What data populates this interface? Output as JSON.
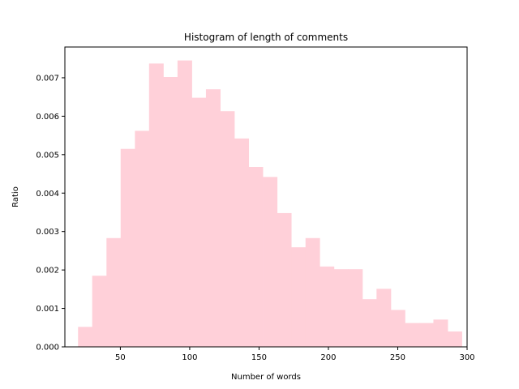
{
  "chart_data": {
    "type": "bar",
    "title": "Histogram of length of comments",
    "xlabel": "Number of words",
    "ylabel": "Ratio",
    "xlim": [
      10,
      300
    ],
    "ylim": [
      0,
      0.0078
    ],
    "x_ticks": [
      50,
      100,
      150,
      200,
      250,
      300
    ],
    "y_ticks": [
      0.0,
      0.001,
      0.002,
      0.003,
      0.004,
      0.005,
      0.006,
      0.007
    ],
    "y_tick_labels": [
      "0.000",
      "0.001",
      "0.002",
      "0.003",
      "0.004",
      "0.005",
      "0.006",
      "0.007"
    ],
    "bar_color": "#ffd0d9",
    "grid": false,
    "bins": [
      {
        "x0": 19.5,
        "x1": 29.7,
        "value": 0.00052
      },
      {
        "x0": 29.7,
        "x1": 40.0,
        "value": 0.00185
      },
      {
        "x0": 40.0,
        "x1": 50.2,
        "value": 0.00283
      },
      {
        "x0": 50.2,
        "x1": 60.5,
        "value": 0.00515
      },
      {
        "x0": 60.5,
        "x1": 70.7,
        "value": 0.00562
      },
      {
        "x0": 70.7,
        "x1": 81.0,
        "value": 0.00737
      },
      {
        "x0": 81.0,
        "x1": 91.2,
        "value": 0.00702
      },
      {
        "x0": 91.2,
        "x1": 101.5,
        "value": 0.00745
      },
      {
        "x0": 101.5,
        "x1": 111.7,
        "value": 0.00648
      },
      {
        "x0": 111.7,
        "x1": 122.0,
        "value": 0.0067
      },
      {
        "x0": 122.0,
        "x1": 132.2,
        "value": 0.00613
      },
      {
        "x0": 132.2,
        "x1": 142.5,
        "value": 0.00542
      },
      {
        "x0": 142.5,
        "x1": 152.7,
        "value": 0.00468
      },
      {
        "x0": 152.7,
        "x1": 163.0,
        "value": 0.00442
      },
      {
        "x0": 163.0,
        "x1": 173.2,
        "value": 0.00348
      },
      {
        "x0": 173.2,
        "x1": 183.5,
        "value": 0.00259
      },
      {
        "x0": 183.5,
        "x1": 193.7,
        "value": 0.00283
      },
      {
        "x0": 193.7,
        "x1": 204.0,
        "value": 0.00209
      },
      {
        "x0": 204.0,
        "x1": 214.2,
        "value": 0.00202
      },
      {
        "x0": 214.2,
        "x1": 224.5,
        "value": 0.00202
      },
      {
        "x0": 224.5,
        "x1": 234.7,
        "value": 0.00124
      },
      {
        "x0": 234.7,
        "x1": 245.0,
        "value": 0.00151
      },
      {
        "x0": 245.0,
        "x1": 255.2,
        "value": 0.00096
      },
      {
        "x0": 255.2,
        "x1": 265.5,
        "value": 0.00062
      },
      {
        "x0": 265.5,
        "x1": 275.7,
        "value": 0.00062
      },
      {
        "x0": 275.7,
        "x1": 286.0,
        "value": 0.00071
      },
      {
        "x0": 286.0,
        "x1": 296.2,
        "value": 0.0004
      }
    ]
  }
}
